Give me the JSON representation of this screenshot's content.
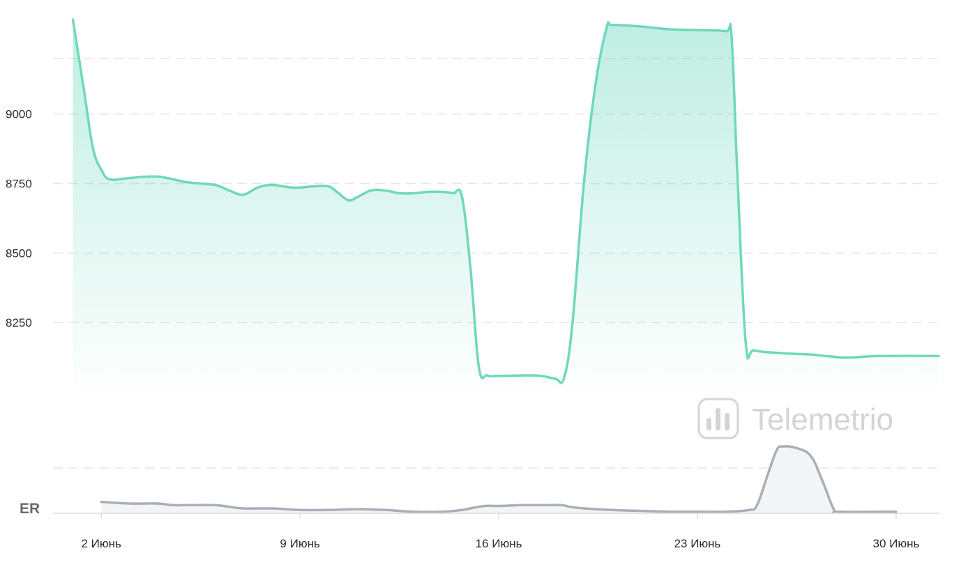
{
  "watermark": {
    "text": "Telemetrio",
    "icon": "bar-chart-icon"
  },
  "colors": {
    "main_line": "#6fd8bd",
    "er_line": "#a9afb8",
    "grid": "#e6e6e6"
  },
  "chart_data": [
    {
      "type": "area",
      "name": "main",
      "y_ticks": [
        8250,
        8500,
        8750,
        9000
      ],
      "ylim": [
        8020,
        9360
      ],
      "xlim": [
        0.3,
        31.5
      ],
      "x_tick_days": [
        2,
        9,
        16,
        23,
        30
      ],
      "x_tick_labels": [
        "2 Июнь",
        "9 Июнь",
        "16 Июнь",
        "23 Июнь",
        "30 Июнь"
      ],
      "grid": true,
      "points": [
        [
          1.0,
          9340
        ],
        [
          1.4,
          9080
        ],
        [
          1.7,
          8880
        ],
        [
          2.0,
          8800
        ],
        [
          2.3,
          8765
        ],
        [
          3.0,
          8770
        ],
        [
          4.0,
          8775
        ],
        [
          5.0,
          8755
        ],
        [
          6.0,
          8745
        ],
        [
          6.5,
          8725
        ],
        [
          7.0,
          8710
        ],
        [
          7.5,
          8735
        ],
        [
          8.0,
          8745
        ],
        [
          8.8,
          8735
        ],
        [
          9.5,
          8740
        ],
        [
          10.0,
          8740
        ],
        [
          10.3,
          8720
        ],
        [
          10.7,
          8690
        ],
        [
          11.0,
          8700
        ],
        [
          11.5,
          8725
        ],
        [
          12.0,
          8725
        ],
        [
          12.5,
          8715
        ],
        [
          13.0,
          8715
        ],
        [
          13.5,
          8720
        ],
        [
          14.0,
          8720
        ],
        [
          14.4,
          8715
        ],
        [
          14.7,
          8705
        ],
        [
          15.0,
          8450
        ],
        [
          15.3,
          8090
        ],
        [
          15.6,
          8060
        ],
        [
          16.0,
          8058
        ],
        [
          17.0,
          8060
        ],
        [
          17.5,
          8058
        ],
        [
          18.0,
          8048
        ],
        [
          18.3,
          8050
        ],
        [
          18.6,
          8250
        ],
        [
          19.0,
          8750
        ],
        [
          19.4,
          9100
        ],
        [
          19.8,
          9310
        ],
        [
          20.0,
          9320
        ],
        [
          21.0,
          9315
        ],
        [
          22.0,
          9305
        ],
        [
          23.0,
          9302
        ],
        [
          24.0,
          9298
        ],
        [
          24.2,
          9280
        ],
        [
          24.4,
          8800
        ],
        [
          24.7,
          8180
        ],
        [
          25.0,
          8150
        ],
        [
          26.0,
          8140
        ],
        [
          27.0,
          8135
        ],
        [
          27.5,
          8130
        ],
        [
          28.0,
          8125
        ],
        [
          28.5,
          8125
        ],
        [
          29.0,
          8128
        ],
        [
          29.5,
          8130
        ],
        [
          31.5,
          8130
        ]
      ]
    },
    {
      "type": "area",
      "name": "ER",
      "label": "ER",
      "y_ticks": [],
      "ylim": [
        0,
        100
      ],
      "xlim": [
        0.3,
        31.5
      ],
      "grid": true,
      "points": [
        [
          2.0,
          14
        ],
        [
          3.0,
          12
        ],
        [
          4.0,
          12
        ],
        [
          4.5,
          10
        ],
        [
          5.0,
          10
        ],
        [
          6.0,
          10
        ],
        [
          6.5,
          8
        ],
        [
          7.0,
          6
        ],
        [
          8.0,
          6
        ],
        [
          8.5,
          5
        ],
        [
          9.0,
          4
        ],
        [
          10.0,
          4
        ],
        [
          11.0,
          5
        ],
        [
          12.0,
          4
        ],
        [
          13.0,
          2
        ],
        [
          14.0,
          2
        ],
        [
          14.7,
          4
        ],
        [
          15.0,
          6
        ],
        [
          15.5,
          9
        ],
        [
          16.0,
          9
        ],
        [
          16.8,
          10
        ],
        [
          17.5,
          10
        ],
        [
          18.2,
          10
        ],
        [
          18.5,
          8
        ],
        [
          19.0,
          6
        ],
        [
          20.0,
          4
        ],
        [
          21.0,
          3
        ],
        [
          22.0,
          2
        ],
        [
          23.0,
          2
        ],
        [
          24.0,
          2
        ],
        [
          24.8,
          4
        ],
        [
          25.1,
          10
        ],
        [
          25.5,
          50
        ],
        [
          25.8,
          78
        ],
        [
          26.0,
          82
        ],
        [
          26.5,
          80
        ],
        [
          27.0,
          70
        ],
        [
          27.4,
          40
        ],
        [
          27.8,
          5
        ],
        [
          28.0,
          2
        ],
        [
          30.0,
          2
        ]
      ]
    }
  ]
}
